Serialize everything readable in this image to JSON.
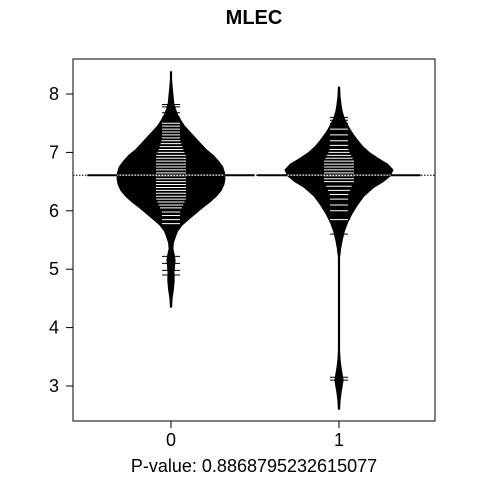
{
  "chart_data": {
    "type": "beanplot",
    "title": "MLEC",
    "xlabel": "P-value: 0.8868795232615077",
    "ylabel": "",
    "categories": [
      "0",
      "1"
    ],
    "y_ticks": [
      "3",
      "4",
      "5",
      "6",
      "7",
      "8"
    ],
    "ylim": [
      2.4,
      8.6
    ],
    "overall_mean": 6.61,
    "grid": false,
    "legend": "none",
    "colors": {
      "bean": "#000000",
      "lines": "#ffffff",
      "background": "#ffffff"
    },
    "groups": [
      {
        "name": "0",
        "mean": 6.61,
        "density": [
          [
            4.35,
            0.0
          ],
          [
            4.5,
            0.02
          ],
          [
            4.65,
            0.045
          ],
          [
            4.8,
            0.06
          ],
          [
            4.95,
            0.055
          ],
          [
            5.05,
            0.065
          ],
          [
            5.15,
            0.075
          ],
          [
            5.25,
            0.06
          ],
          [
            5.35,
            0.035
          ],
          [
            5.45,
            0.045
          ],
          [
            5.55,
            0.08
          ],
          [
            5.65,
            0.12
          ],
          [
            5.75,
            0.2
          ],
          [
            5.85,
            0.32
          ],
          [
            5.95,
            0.45
          ],
          [
            6.05,
            0.58
          ],
          [
            6.15,
            0.72
          ],
          [
            6.25,
            0.84
          ],
          [
            6.35,
            0.93
          ],
          [
            6.45,
            0.98
          ],
          [
            6.55,
            1.0
          ],
          [
            6.65,
            0.99
          ],
          [
            6.75,
            0.96
          ],
          [
            6.85,
            0.88
          ],
          [
            6.95,
            0.78
          ],
          [
            7.05,
            0.65
          ],
          [
            7.15,
            0.55
          ],
          [
            7.25,
            0.45
          ],
          [
            7.35,
            0.35
          ],
          [
            7.45,
            0.25
          ],
          [
            7.55,
            0.18
          ],
          [
            7.65,
            0.12
          ],
          [
            7.75,
            0.08
          ],
          [
            7.85,
            0.05
          ],
          [
            7.95,
            0.04
          ],
          [
            8.1,
            0.025
          ],
          [
            8.25,
            0.01
          ],
          [
            8.38,
            0.0
          ]
        ],
        "observations": [
          4.9,
          4.98,
          5.1,
          5.22,
          5.78,
          5.85,
          5.92,
          5.98,
          6.05,
          6.1,
          6.15,
          6.2,
          6.25,
          6.3,
          6.35,
          6.4,
          6.45,
          6.5,
          6.55,
          6.6,
          6.65,
          6.7,
          6.75,
          6.8,
          6.85,
          6.9,
          6.95,
          7.0,
          7.05,
          7.1,
          7.15,
          7.2,
          7.25,
          7.3,
          7.35,
          7.4,
          7.45,
          7.5,
          7.55,
          7.6,
          7.68,
          7.78,
          7.82
        ]
      },
      {
        "name": "1",
        "mean": 6.61,
        "density": [
          [
            2.6,
            0.0
          ],
          [
            2.75,
            0.02
          ],
          [
            2.9,
            0.04
          ],
          [
            3.0,
            0.06
          ],
          [
            3.1,
            0.075
          ],
          [
            3.2,
            0.06
          ],
          [
            3.3,
            0.04
          ],
          [
            3.45,
            0.02
          ],
          [
            3.6,
            0.005
          ],
          [
            3.8,
            0.002
          ],
          [
            4.5,
            0.002
          ],
          [
            5.0,
            0.004
          ],
          [
            5.2,
            0.01
          ],
          [
            5.35,
            0.03
          ],
          [
            5.5,
            0.06
          ],
          [
            5.65,
            0.1
          ],
          [
            5.8,
            0.16
          ],
          [
            5.95,
            0.24
          ],
          [
            6.1,
            0.34
          ],
          [
            6.25,
            0.46
          ],
          [
            6.4,
            0.64
          ],
          [
            6.5,
            0.82
          ],
          [
            6.6,
            0.95
          ],
          [
            6.7,
            1.0
          ],
          [
            6.8,
            0.9
          ],
          [
            6.9,
            0.72
          ],
          [
            7.0,
            0.56
          ],
          [
            7.1,
            0.44
          ],
          [
            7.2,
            0.35
          ],
          [
            7.3,
            0.27
          ],
          [
            7.4,
            0.2
          ],
          [
            7.5,
            0.14
          ],
          [
            7.6,
            0.09
          ],
          [
            7.7,
            0.06
          ],
          [
            7.8,
            0.04
          ],
          [
            7.95,
            0.02
          ],
          [
            8.12,
            0.0
          ]
        ],
        "observations": [
          3.1,
          3.15,
          5.6,
          5.85,
          6.0,
          6.1,
          6.2,
          6.28,
          6.35,
          6.42,
          6.5,
          6.55,
          6.6,
          6.65,
          6.7,
          6.75,
          6.8,
          6.85,
          6.9,
          6.95,
          7.0,
          7.05,
          7.12,
          7.2,
          7.3,
          7.4,
          7.5,
          7.55,
          7.6
        ]
      }
    ]
  }
}
